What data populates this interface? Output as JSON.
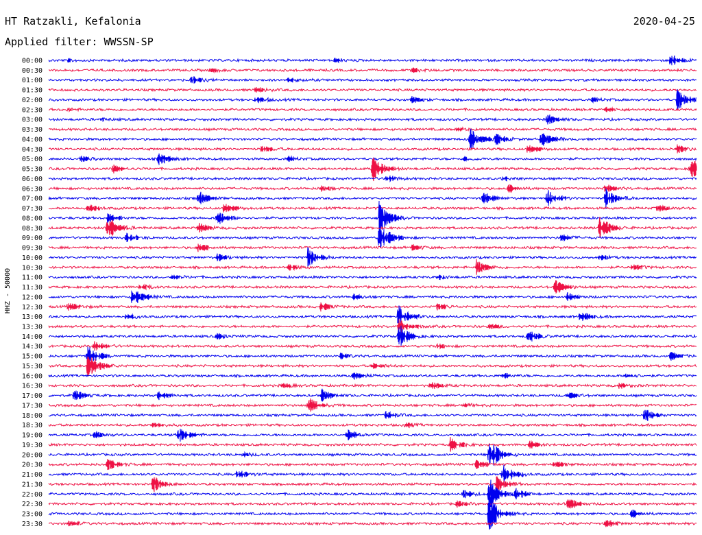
{
  "header": {
    "station": "HT Ratzakli, Kefalonia",
    "date": "2020-04-25",
    "filter": "Applied filter: WWSSN-SP"
  },
  "chart_data": {
    "type": "line",
    "title": "HT Ratzakli, Kefalonia",
    "subtitle": "Applied filter: WWSSN-SP",
    "ylabel": "HHZ - 50000",
    "xlabel": "",
    "grid": false,
    "colors": [
      "#0000ee",
      "#ee1144"
    ],
    "traces": [
      {
        "label": "00:00",
        "events": [
          {
            "t": 0.96,
            "a": 10
          },
          {
            "t": 0.44,
            "a": 3
          },
          {
            "t": 0.03,
            "a": 2
          }
        ]
      },
      {
        "label": "00:30",
        "events": [
          {
            "t": 0.25,
            "a": 3
          },
          {
            "t": 0.56,
            "a": 3
          }
        ]
      },
      {
        "label": "01:00",
        "events": [
          {
            "t": 0.22,
            "a": 6
          },
          {
            "t": 0.37,
            "a": 4
          }
        ]
      },
      {
        "label": "01:30",
        "events": [
          {
            "t": 0.32,
            "a": 4
          }
        ]
      },
      {
        "label": "02:00",
        "events": [
          {
            "t": 0.97,
            "a": 18
          },
          {
            "t": 0.32,
            "a": 5
          },
          {
            "t": 0.56,
            "a": 5
          },
          {
            "t": 0.84,
            "a": 3
          }
        ]
      },
      {
        "label": "02:30",
        "events": [
          {
            "t": 0.86,
            "a": 4
          },
          {
            "t": 0.03,
            "a": 2
          }
        ]
      },
      {
        "label": "03:00",
        "events": [
          {
            "t": 0.77,
            "a": 8
          },
          {
            "t": 0.08,
            "a": 2
          }
        ]
      },
      {
        "label": "03:30",
        "events": [
          {
            "t": 0.63,
            "a": 3
          }
        ]
      },
      {
        "label": "04:00",
        "events": [
          {
            "t": 0.65,
            "a": 20
          },
          {
            "t": 0.76,
            "a": 12
          },
          {
            "t": 0.69,
            "a": 8
          }
        ]
      },
      {
        "label": "04:30",
        "events": [
          {
            "t": 0.33,
            "a": 5
          },
          {
            "t": 0.74,
            "a": 8
          },
          {
            "t": 0.97,
            "a": 6
          }
        ]
      },
      {
        "label": "05:00",
        "events": [
          {
            "t": 0.17,
            "a": 10
          },
          {
            "t": 0.05,
            "a": 4
          },
          {
            "t": 0.37,
            "a": 3
          },
          {
            "t": 0.64,
            "a": 3
          }
        ]
      },
      {
        "label": "05:30",
        "events": [
          {
            "t": 0.5,
            "a": 22
          },
          {
            "t": 0.99,
            "a": 20
          },
          {
            "t": 0.1,
            "a": 6
          }
        ]
      },
      {
        "label": "06:00",
        "events": [
          {
            "t": 0.52,
            "a": 6
          },
          {
            "t": 0.7,
            "a": 3
          }
        ]
      },
      {
        "label": "06:30",
        "events": [
          {
            "t": 0.42,
            "a": 5
          },
          {
            "t": 0.71,
            "a": 5
          },
          {
            "t": 0.86,
            "a": 6
          }
        ]
      },
      {
        "label": "07:00",
        "events": [
          {
            "t": 0.23,
            "a": 12
          },
          {
            "t": 0.67,
            "a": 10
          },
          {
            "t": 0.77,
            "a": 12
          },
          {
            "t": 0.86,
            "a": 16
          }
        ]
      },
      {
        "label": "07:30",
        "events": [
          {
            "t": 0.06,
            "a": 6
          },
          {
            "t": 0.27,
            "a": 10
          },
          {
            "t": 0.94,
            "a": 5
          }
        ]
      },
      {
        "label": "08:00",
        "events": [
          {
            "t": 0.26,
            "a": 12
          },
          {
            "t": 0.51,
            "a": 28
          },
          {
            "t": 0.09,
            "a": 8
          }
        ]
      },
      {
        "label": "08:30",
        "events": [
          {
            "t": 0.09,
            "a": 22
          },
          {
            "t": 0.85,
            "a": 22
          },
          {
            "t": 0.23,
            "a": 8
          }
        ]
      },
      {
        "label": "09:00",
        "events": [
          {
            "t": 0.51,
            "a": 30
          },
          {
            "t": 0.12,
            "a": 6
          },
          {
            "t": 0.79,
            "a": 6
          }
        ]
      },
      {
        "label": "09:30",
        "events": [
          {
            "t": 0.23,
            "a": 6
          },
          {
            "t": 0.56,
            "a": 5
          }
        ]
      },
      {
        "label": "10:00",
        "events": [
          {
            "t": 0.4,
            "a": 16
          },
          {
            "t": 0.26,
            "a": 5
          },
          {
            "t": 0.85,
            "a": 4
          }
        ]
      },
      {
        "label": "10:30",
        "events": [
          {
            "t": 0.66,
            "a": 12
          },
          {
            "t": 0.37,
            "a": 5
          },
          {
            "t": 0.9,
            "a": 5
          }
        ]
      },
      {
        "label": "11:00",
        "events": [
          {
            "t": 0.19,
            "a": 4
          },
          {
            "t": 0.6,
            "a": 3
          }
        ]
      },
      {
        "label": "11:30",
        "events": [
          {
            "t": 0.78,
            "a": 14
          },
          {
            "t": 0.14,
            "a": 4
          }
        ]
      },
      {
        "label": "12:00",
        "events": [
          {
            "t": 0.13,
            "a": 16
          },
          {
            "t": 0.8,
            "a": 6
          },
          {
            "t": 0.47,
            "a": 4
          }
        ]
      },
      {
        "label": "12:30",
        "events": [
          {
            "t": 0.42,
            "a": 6
          },
          {
            "t": 0.03,
            "a": 6
          },
          {
            "t": 0.6,
            "a": 5
          }
        ]
      },
      {
        "label": "13:00",
        "events": [
          {
            "t": 0.54,
            "a": 18
          },
          {
            "t": 0.82,
            "a": 8
          },
          {
            "t": 0.12,
            "a": 4
          }
        ]
      },
      {
        "label": "13:30",
        "events": [
          {
            "t": 0.54,
            "a": 14
          },
          {
            "t": 0.68,
            "a": 4
          }
        ]
      },
      {
        "label": "14:00",
        "events": [
          {
            "t": 0.54,
            "a": 20
          },
          {
            "t": 0.74,
            "a": 10
          },
          {
            "t": 0.26,
            "a": 4
          }
        ]
      },
      {
        "label": "14:30",
        "events": [
          {
            "t": 0.07,
            "a": 8
          },
          {
            "t": 0.6,
            "a": 3
          }
        ]
      },
      {
        "label": "15:00",
        "events": [
          {
            "t": 0.06,
            "a": 16
          },
          {
            "t": 0.45,
            "a": 4
          },
          {
            "t": 0.96,
            "a": 6
          }
        ]
      },
      {
        "label": "15:30",
        "events": [
          {
            "t": 0.06,
            "a": 30
          },
          {
            "t": 0.5,
            "a": 5
          }
        ]
      },
      {
        "label": "16:00",
        "events": [
          {
            "t": 0.47,
            "a": 6
          },
          {
            "t": 0.7,
            "a": 4
          },
          {
            "t": 0.89,
            "a": 4
          }
        ]
      },
      {
        "label": "16:30",
        "events": [
          {
            "t": 0.59,
            "a": 6
          },
          {
            "t": 0.36,
            "a": 4
          },
          {
            "t": 0.88,
            "a": 4
          }
        ]
      },
      {
        "label": "17:00",
        "events": [
          {
            "t": 0.42,
            "a": 10
          },
          {
            "t": 0.17,
            "a": 6
          },
          {
            "t": 0.8,
            "a": 6
          },
          {
            "t": 0.04,
            "a": 8
          }
        ]
      },
      {
        "label": "17:30",
        "events": [
          {
            "t": 0.4,
            "a": 14
          },
          {
            "t": 0.64,
            "a": 3
          }
        ]
      },
      {
        "label": "18:00",
        "events": [
          {
            "t": 0.92,
            "a": 10
          },
          {
            "t": 0.52,
            "a": 6
          }
        ]
      },
      {
        "label": "18:30",
        "events": [
          {
            "t": 0.16,
            "a": 5
          },
          {
            "t": 0.55,
            "a": 3
          }
        ]
      },
      {
        "label": "19:00",
        "events": [
          {
            "t": 0.2,
            "a": 14
          },
          {
            "t": 0.46,
            "a": 8
          },
          {
            "t": 0.07,
            "a": 5
          }
        ]
      },
      {
        "label": "19:30",
        "events": [
          {
            "t": 0.62,
            "a": 10
          },
          {
            "t": 0.74,
            "a": 6
          }
        ]
      },
      {
        "label": "20:00",
        "events": [
          {
            "t": 0.68,
            "a": 28
          },
          {
            "t": 0.3,
            "a": 3
          }
        ]
      },
      {
        "label": "20:30",
        "events": [
          {
            "t": 0.09,
            "a": 10
          },
          {
            "t": 0.66,
            "a": 6
          },
          {
            "t": 0.78,
            "a": 5
          }
        ]
      },
      {
        "label": "21:00",
        "events": [
          {
            "t": 0.29,
            "a": 8
          },
          {
            "t": 0.7,
            "a": 20
          }
        ]
      },
      {
        "label": "21:30",
        "events": [
          {
            "t": 0.16,
            "a": 14
          },
          {
            "t": 0.69,
            "a": 14
          }
        ]
      },
      {
        "label": "22:00",
        "events": [
          {
            "t": 0.68,
            "a": 24
          },
          {
            "t": 0.64,
            "a": 6
          },
          {
            "t": 0.72,
            "a": 8
          }
        ]
      },
      {
        "label": "22:30",
        "events": [
          {
            "t": 0.8,
            "a": 12
          },
          {
            "t": 0.63,
            "a": 4
          }
        ]
      },
      {
        "label": "23:00",
        "events": [
          {
            "t": 0.68,
            "a": 30
          },
          {
            "t": 0.9,
            "a": 5
          }
        ]
      },
      {
        "label": "23:30",
        "events": [
          {
            "t": 0.03,
            "a": 5
          },
          {
            "t": 0.86,
            "a": 6
          }
        ]
      }
    ]
  }
}
